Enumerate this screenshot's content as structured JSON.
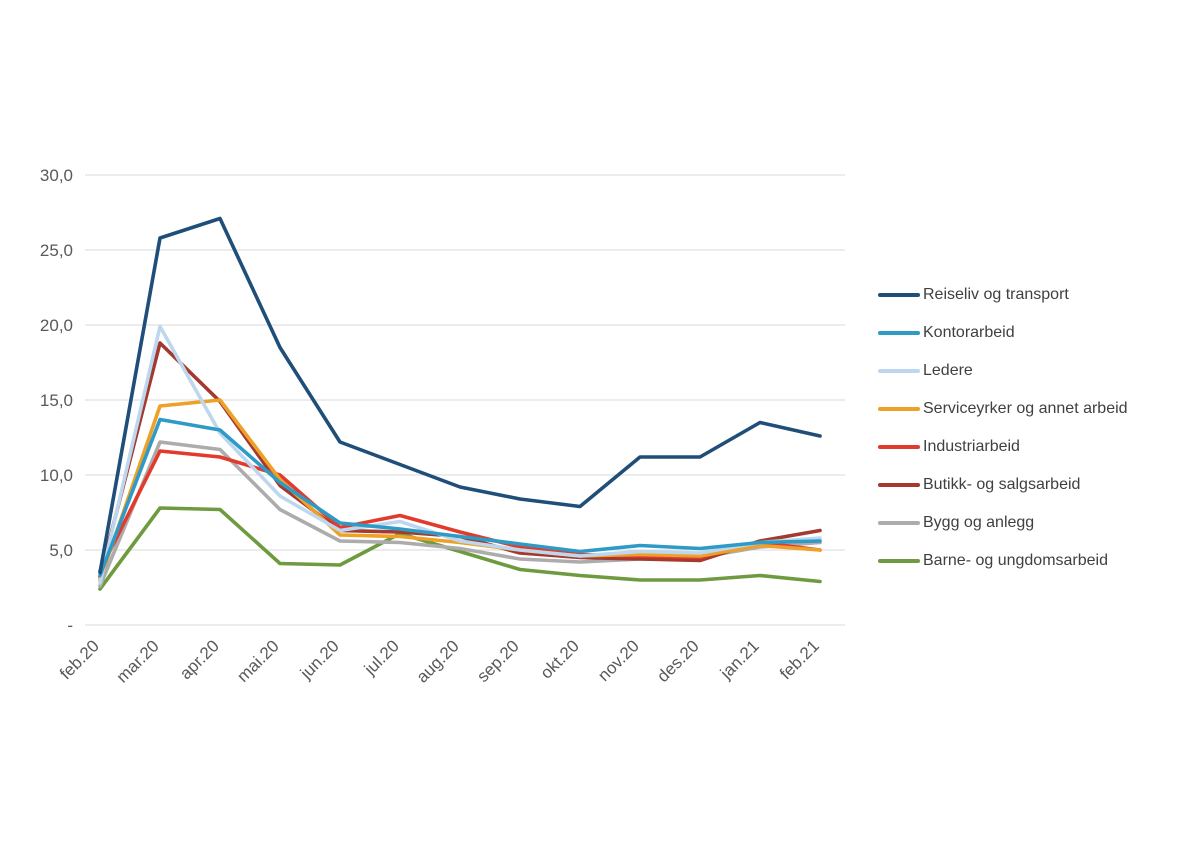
{
  "page": {
    "background_color": "#ffffff",
    "axis_text_color": "#595959",
    "gridline_color": "#d9d9d9",
    "legend_text_color": "#404040"
  },
  "chart_data": {
    "type": "line",
    "title": "",
    "xlabel": "",
    "ylabel": "",
    "ylim": [
      0,
      30
    ],
    "grid": true,
    "legend_position": "right",
    "y_tick_labels": [
      "-",
      "5,0",
      "10,0",
      "15,0",
      "20,0",
      "25,0",
      "30,0"
    ],
    "y_tick_values": [
      0,
      5,
      10,
      15,
      20,
      25,
      30
    ],
    "categories": [
      "feb.20",
      "mar.20",
      "apr.20",
      "mai.20",
      "jun.20",
      "jul.20",
      "aug.20",
      "sep.20",
      "okt.20",
      "nov.20",
      "des.20",
      "jan.21",
      "feb.21"
    ],
    "series": [
      {
        "name": "Reiseliv og transport",
        "color": "#1F4E79",
        "values": [
          3.5,
          25.8,
          27.1,
          18.5,
          12.2,
          10.7,
          9.2,
          8.4,
          7.9,
          11.2,
          11.2,
          13.5,
          12.6
        ]
      },
      {
        "name": "Kontorarbeid",
        "color": "#2E9BC6",
        "values": [
          3.3,
          13.7,
          13.0,
          9.5,
          6.8,
          6.4,
          5.9,
          5.4,
          4.9,
          5.3,
          5.1,
          5.5,
          5.6
        ]
      },
      {
        "name": "Ledere",
        "color": "#BDD7EE",
        "values": [
          2.8,
          19.9,
          12.8,
          8.6,
          6.3,
          6.9,
          5.6,
          5.0,
          4.6,
          4.9,
          4.8,
          5.5,
          5.8
        ]
      },
      {
        "name": "Serviceyrker og annet arbeid",
        "color": "#EDA128",
        "values": [
          3.0,
          14.6,
          15.0,
          9.7,
          6.0,
          5.9,
          5.5,
          5.0,
          4.6,
          4.7,
          4.6,
          5.3,
          5.0
        ]
      },
      {
        "name": "Industriarbeid",
        "color": "#E23B2E",
        "values": [
          3.6,
          11.6,
          11.2,
          10.0,
          6.5,
          7.3,
          6.2,
          5.2,
          4.7,
          4.6,
          4.5,
          5.5,
          5.0
        ]
      },
      {
        "name": "Butikk- og salgsarbeid",
        "color": "#A4392F",
        "values": [
          3.2,
          18.8,
          14.9,
          9.3,
          6.3,
          6.2,
          5.9,
          4.8,
          4.5,
          4.4,
          4.3,
          5.6,
          6.3
        ]
      },
      {
        "name": "Bygg og anlegg",
        "color": "#ACACAC",
        "values": [
          2.6,
          12.2,
          11.7,
          7.7,
          5.6,
          5.5,
          5.1,
          4.4,
          4.2,
          4.4,
          4.5,
          5.2,
          5.5
        ]
      },
      {
        "name": "Barne- og ungdomsarbeid",
        "color": "#6E9B3F",
        "values": [
          2.4,
          7.8,
          7.7,
          4.1,
          4.0,
          6.1,
          4.9,
          3.7,
          3.3,
          3.0,
          3.0,
          3.3,
          2.9
        ]
      }
    ]
  }
}
